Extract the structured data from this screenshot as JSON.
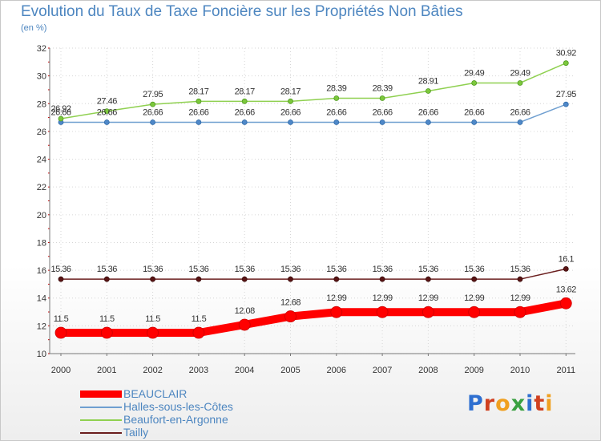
{
  "title": "Evolution du Taux de Taxe Foncière sur les Propriétés Non Bâties",
  "subtitle": "(en %)",
  "brand": {
    "text": "Proxiti",
    "letter_colors": [
      "#2e6fd0",
      "#d04020",
      "#f0a020",
      "#3aa040",
      "#2e6fd0",
      "#d04020",
      "#f0a020"
    ]
  },
  "chart_data": {
    "type": "line",
    "title": "Evolution du Taux de Taxe Foncière sur les Propriétés Non Bâties",
    "ylabel": "(en %)",
    "xlabel": "",
    "ylim": [
      10,
      32
    ],
    "yticks": [
      10,
      12,
      14,
      16,
      18,
      20,
      22,
      24,
      26,
      28,
      30,
      32
    ],
    "grid": true,
    "categories": [
      "2000",
      "2001",
      "2002",
      "2003",
      "2004",
      "2005",
      "2006",
      "2007",
      "2008",
      "2009",
      "2010",
      "2011"
    ],
    "series": [
      {
        "name": "BEAUCLAIR",
        "color": "#ff0000",
        "values": [
          11.5,
          11.5,
          11.5,
          11.5,
          12.08,
          12.68,
          12.99,
          12.99,
          12.99,
          12.99,
          12.99,
          13.62
        ],
        "labels": [
          "11.5",
          "11.5",
          "11.5",
          "11.5",
          "12.08",
          "12.68",
          "12.99",
          "12.99",
          "12.99",
          "12.99",
          "12.99",
          "13.62"
        ]
      },
      {
        "name": "Halles-sous-les-Côtes",
        "color": "#6f9fd0",
        "values": [
          26.66,
          26.66,
          26.66,
          26.66,
          26.66,
          26.66,
          26.66,
          26.66,
          26.66,
          26.66,
          26.66,
          27.95
        ],
        "labels": [
          "26.66",
          "26.66",
          "26.66",
          "26.66",
          "26.66",
          "26.66",
          "26.66",
          "26.66",
          "26.66",
          "26.66",
          "26.66",
          "27.95"
        ]
      },
      {
        "name": "Beaufort-en-Argonne",
        "color": "#8fd050",
        "values": [
          26.92,
          27.46,
          27.95,
          28.17,
          28.17,
          28.17,
          28.39,
          28.39,
          28.91,
          29.49,
          29.49,
          30.92
        ],
        "labels": [
          "26.92",
          "27.46",
          "27.95",
          "28.17",
          "28.17",
          "28.17",
          "28.39",
          "28.39",
          "28.91",
          "29.49",
          "29.49",
          "30.92"
        ]
      },
      {
        "name": "Tailly",
        "color": "#6b1f1f",
        "values": [
          15.36,
          15.36,
          15.36,
          15.36,
          15.36,
          15.36,
          15.36,
          15.36,
          15.36,
          15.36,
          15.36,
          16.1
        ],
        "labels": [
          "15.36",
          "15.36",
          "15.36",
          "15.36",
          "15.36",
          "15.36",
          "15.36",
          "15.36",
          "15.36",
          "15.36",
          "15.36",
          "16.1"
        ]
      }
    ],
    "legend_position": "bottom-left"
  }
}
